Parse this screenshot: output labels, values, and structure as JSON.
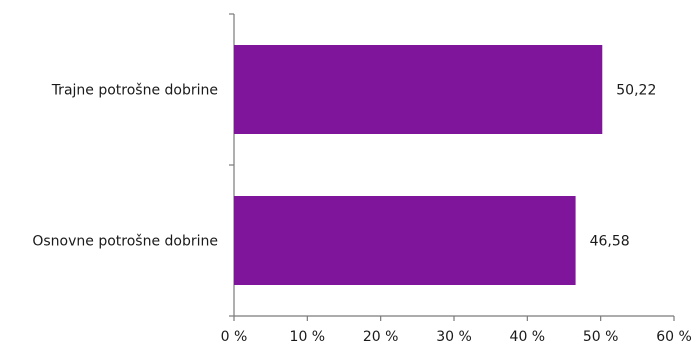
{
  "chart_data": {
    "type": "bar",
    "orientation": "horizontal",
    "categories": [
      "Trajne potrošne dobrine",
      "Osnovne potrošne dobrine"
    ],
    "values": [
      50.22,
      46.58
    ],
    "data_labels": [
      "50,22",
      "46,58"
    ],
    "xlim": [
      0,
      60
    ],
    "x_ticks": [
      0,
      10,
      20,
      30,
      40,
      50,
      60
    ],
    "x_tick_labels": [
      "0 %",
      "10 %",
      "20 %",
      "30 %",
      "40 %",
      "50 %",
      "60 %"
    ],
    "bar_color": "#7f159a",
    "grid": false,
    "legend": "none"
  }
}
